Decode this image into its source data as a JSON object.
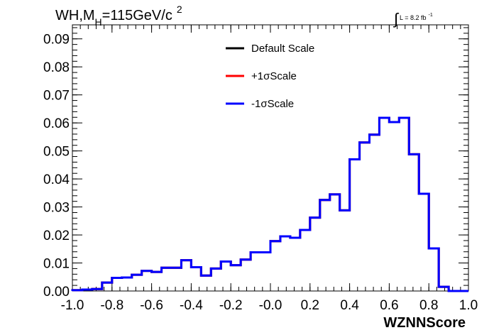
{
  "chart_data": {
    "type": "histogram",
    "title": {
      "main": "WH,M",
      "sub": "H",
      "rest": "=115GeV/c",
      "sup": "2"
    },
    "luminosity": {
      "symbol": "∫",
      "text": "L = 8.2 fb",
      "sup": "-1"
    },
    "xlabel": "WZNNScore",
    "ylabel": "",
    "xlim": [
      -1.0,
      1.0
    ],
    "ylim": [
      0.0,
      0.095
    ],
    "x_ticks": [
      "-1.0",
      "-0.8",
      "-0.6",
      "-0.4",
      "-0.2",
      "-0.0",
      "0.2",
      "0.4",
      "0.6",
      "0.8",
      "1.0"
    ],
    "x_tick_values": [
      -1.0,
      -0.8,
      -0.6,
      -0.4,
      -0.2,
      0.0,
      0.2,
      0.4,
      0.6,
      0.8,
      1.0
    ],
    "y_ticks": [
      "0.00",
      "0.01",
      "0.02",
      "0.03",
      "0.04",
      "0.05",
      "0.06",
      "0.07",
      "0.08",
      "0.09"
    ],
    "y_tick_values": [
      0.0,
      0.01,
      0.02,
      0.03,
      0.04,
      0.05,
      0.06,
      0.07,
      0.08,
      0.09
    ],
    "bin_edges": [
      -1.0,
      -0.95,
      -0.9,
      -0.85,
      -0.8,
      -0.75,
      -0.7,
      -0.65,
      -0.6,
      -0.55,
      -0.5,
      -0.45,
      -0.4,
      -0.35,
      -0.3,
      -0.25,
      -0.2,
      -0.15,
      -0.1,
      -0.05,
      0.0,
      0.05,
      0.1,
      0.15,
      0.2,
      0.25,
      0.3,
      0.35,
      0.4,
      0.45,
      0.5,
      0.55,
      0.6,
      0.65,
      0.7,
      0.75,
      0.8,
      0.85,
      0.9,
      0.95,
      1.0
    ],
    "series": [
      {
        "name": "Default Scale",
        "color": "#000000",
        "values": [
          0.0003,
          0.0005,
          0.0007,
          0.003,
          0.0047,
          0.0048,
          0.0058,
          0.0072,
          0.0068,
          0.0083,
          0.0083,
          0.011,
          0.0085,
          0.0055,
          0.008,
          0.0105,
          0.0092,
          0.0112,
          0.0138,
          0.0138,
          0.0178,
          0.0195,
          0.019,
          0.0218,
          0.0262,
          0.0325,
          0.0345,
          0.0288,
          0.047,
          0.053,
          0.0558,
          0.0618,
          0.0603,
          0.0618,
          0.0488,
          0.0347,
          0.0152,
          0.0015,
          0.0,
          0.0
        ]
      },
      {
        "name": "+1σScale",
        "color": "#ff0000",
        "values": [
          0.0003,
          0.0005,
          0.0007,
          0.003,
          0.0047,
          0.0048,
          0.0058,
          0.0072,
          0.0068,
          0.0083,
          0.0083,
          0.011,
          0.0085,
          0.0055,
          0.008,
          0.0105,
          0.0092,
          0.0112,
          0.0138,
          0.0138,
          0.0178,
          0.0195,
          0.019,
          0.0218,
          0.0262,
          0.0325,
          0.0345,
          0.0288,
          0.047,
          0.053,
          0.0558,
          0.0618,
          0.0603,
          0.0618,
          0.0488,
          0.0347,
          0.0152,
          0.0015,
          0.0,
          0.0
        ]
      },
      {
        "name": "-1σScale",
        "color": "#0000ff",
        "values": [
          0.0003,
          0.0005,
          0.0007,
          0.003,
          0.0047,
          0.0048,
          0.0058,
          0.0072,
          0.0068,
          0.0083,
          0.0083,
          0.011,
          0.0085,
          0.0055,
          0.008,
          0.0105,
          0.0092,
          0.0112,
          0.0138,
          0.0138,
          0.0178,
          0.0195,
          0.019,
          0.0218,
          0.0262,
          0.0325,
          0.0345,
          0.0288,
          0.047,
          0.053,
          0.0558,
          0.0618,
          0.0603,
          0.0618,
          0.0488,
          0.0347,
          0.0152,
          0.0015,
          0.0,
          0.0
        ]
      }
    ],
    "legend": {
      "placement": "top-center",
      "entries": [
        "Default Scale",
        "+1σScale",
        "-1σScale"
      ]
    },
    "grid": false
  }
}
